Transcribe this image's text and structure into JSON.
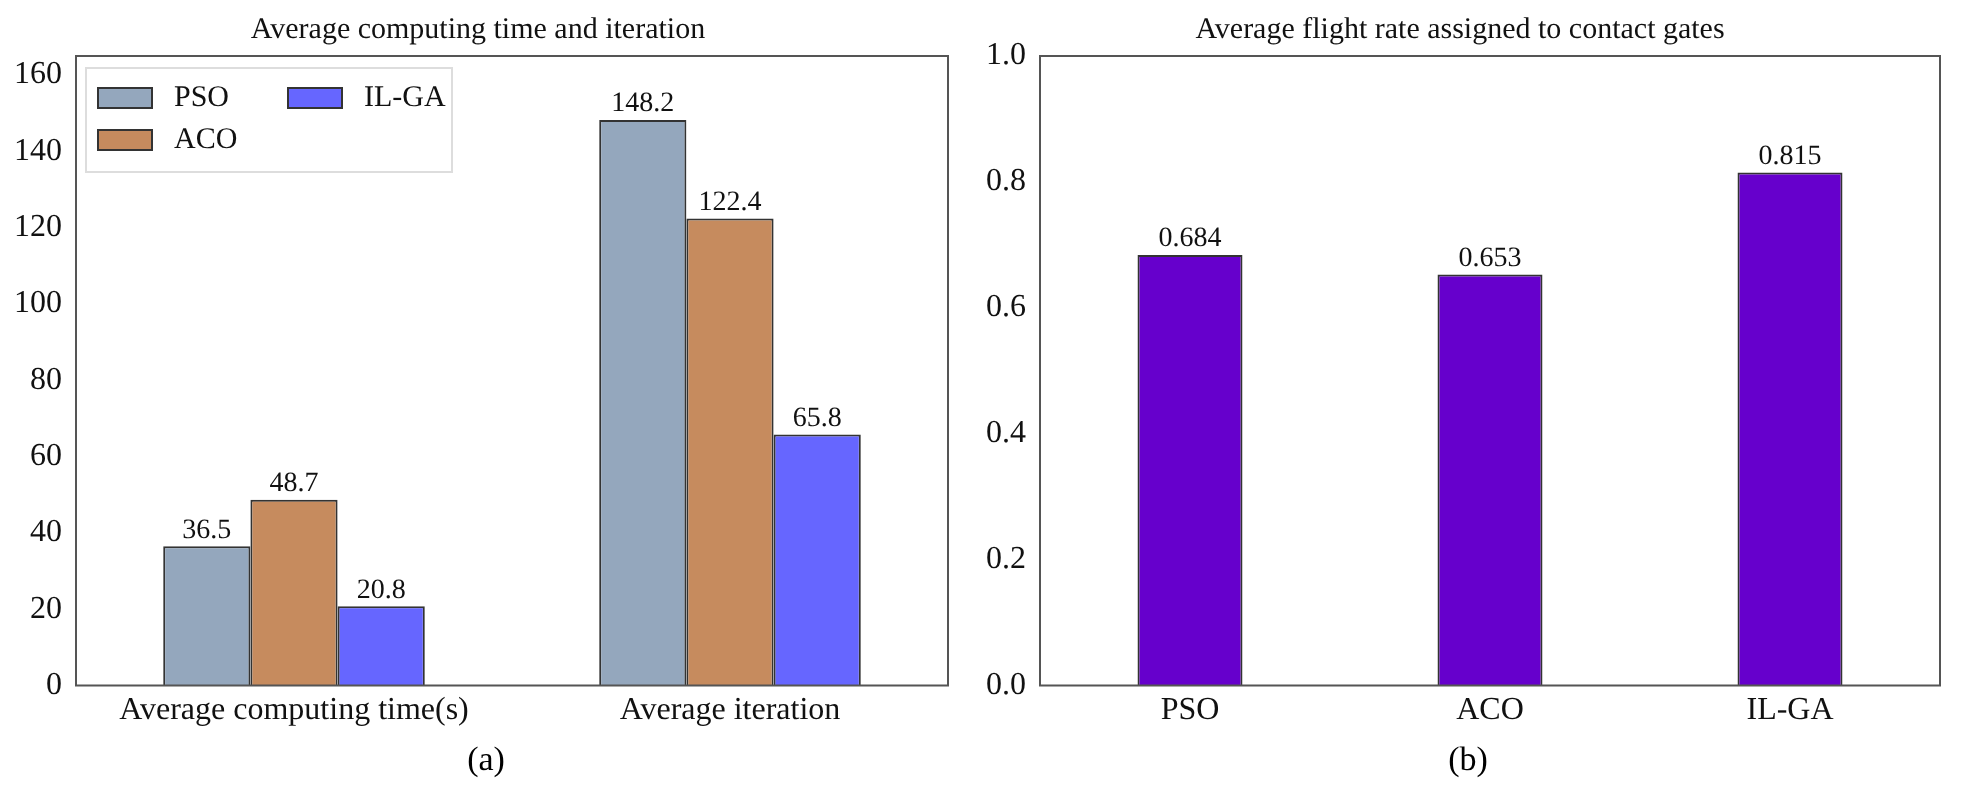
{
  "chart_data": [
    {
      "type": "bar",
      "title": "Average computing time and iteration",
      "categories": [
        "Average computing time(s)",
        "Average iteration"
      ],
      "series": [
        {
          "name": "PSO",
          "color": "#94a7bd",
          "values": [
            36.5,
            148.2
          ]
        },
        {
          "name": "ACO",
          "color": "#c68b5e",
          "values": [
            48.7,
            122.4
          ]
        },
        {
          "name": "IL-GA",
          "color": "#6666ff",
          "values": [
            20.8,
            65.8
          ]
        }
      ],
      "ylim": [
        0,
        165
      ],
      "yticks": [
        0,
        20,
        40,
        60,
        80,
        100,
        120,
        140,
        160
      ],
      "grid": false,
      "legend": "top left",
      "data_labels": true,
      "annotations": [
        "(a)"
      ]
    },
    {
      "type": "bar",
      "title": "Average flight rate assigned to contact gates",
      "categories": [
        "PSO",
        "ACO",
        "IL-GA"
      ],
      "values": [
        0.684,
        0.653,
        0.815
      ],
      "color": "#6600cc",
      "ylim": [
        0,
        1
      ],
      "yticks": [
        {
          "value": 0,
          "label": "0.0"
        },
        0.2,
        0.4,
        0.6,
        0.8,
        {
          "value": 1,
          "label": "1.0"
        }
      ],
      "grid": false,
      "data_labels": true,
      "annotations": [
        "(b)"
      ]
    }
  ]
}
